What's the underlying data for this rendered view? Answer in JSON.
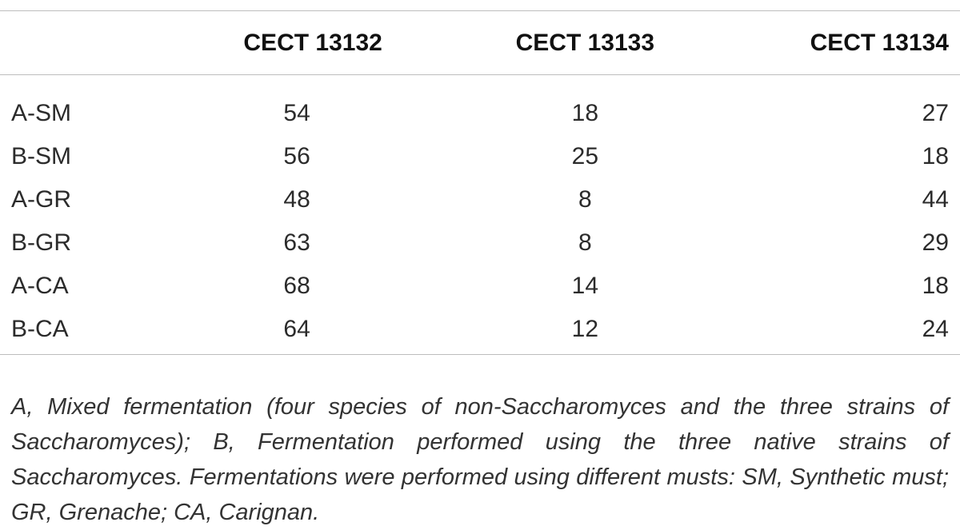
{
  "table": {
    "columns": [
      "",
      "CECT 13132",
      "CECT 13133",
      "CECT 13134"
    ],
    "rows": [
      {
        "label": "A-SM",
        "values": [
          "54",
          "18",
          "27"
        ]
      },
      {
        "label": "B-SM",
        "values": [
          "56",
          "25",
          "18"
        ]
      },
      {
        "label": "A-GR",
        "values": [
          "48",
          "8",
          "44"
        ]
      },
      {
        "label": "B-GR",
        "values": [
          "63",
          "8",
          "29"
        ]
      },
      {
        "label": "A-CA",
        "values": [
          "68",
          "14",
          "18"
        ]
      },
      {
        "label": "B-CA",
        "values": [
          "64",
          "12",
          "24"
        ]
      }
    ]
  },
  "footnote": "A, Mixed fermentation (four species of non-Saccharomyces and the three strains of Saccharomyces); B, Fermentation performed using the three native strains of Saccharomyces. Fermentations were performed using different musts: SM, Synthetic must; GR, Grenache; CA, Carignan."
}
